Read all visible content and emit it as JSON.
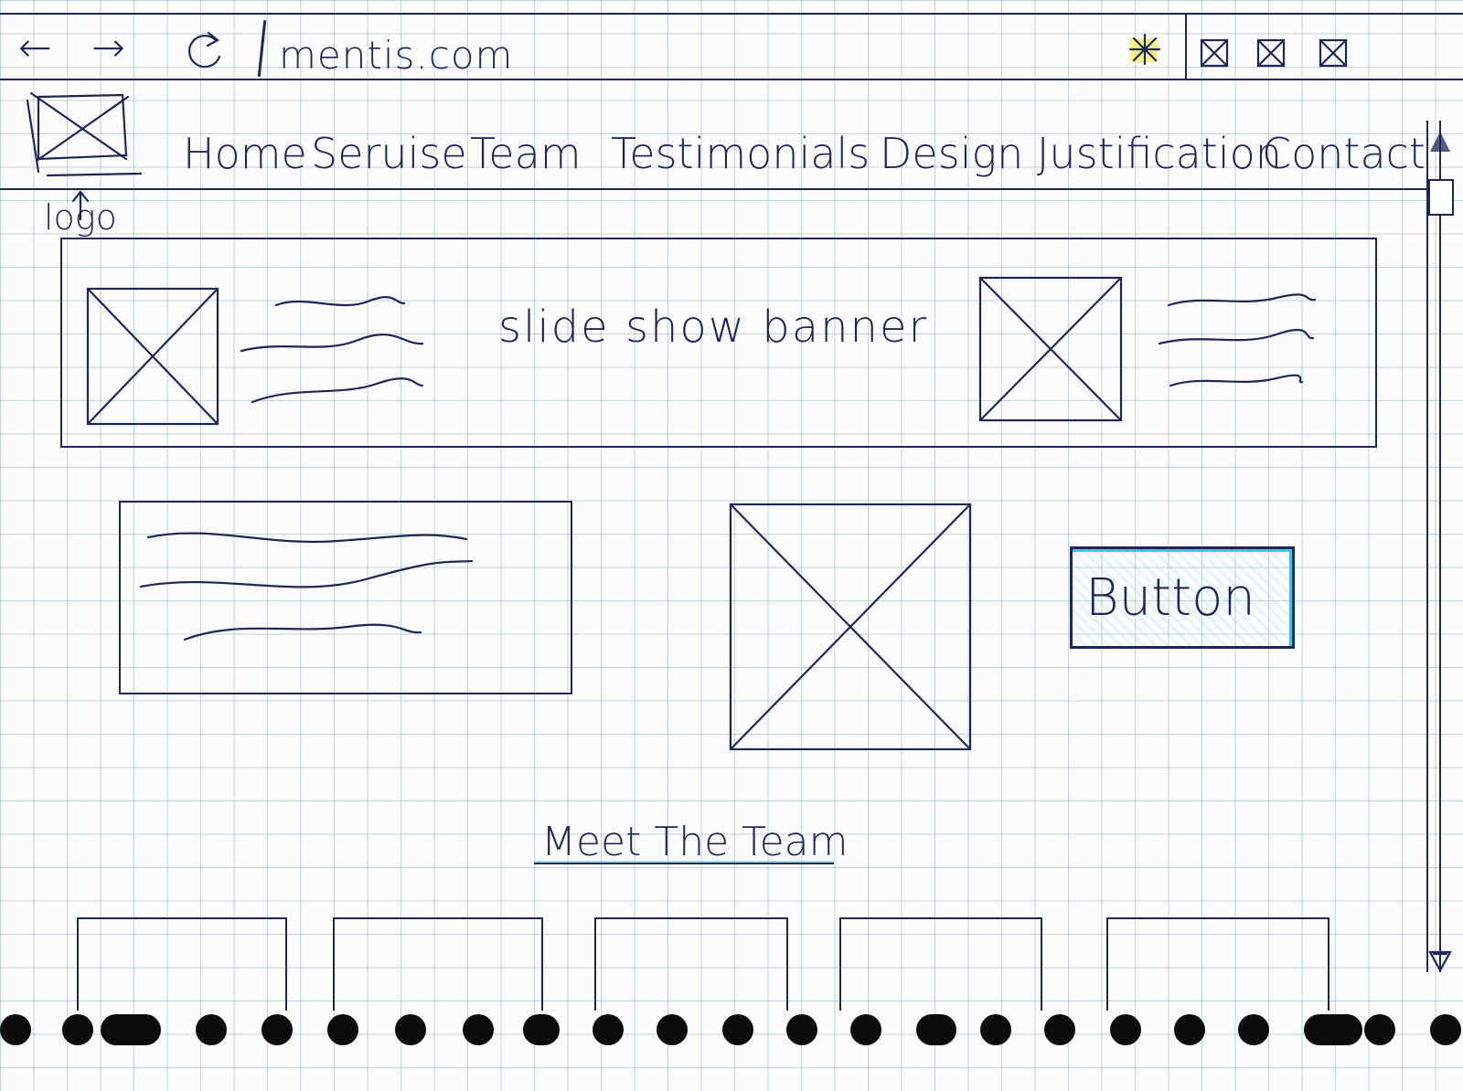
{
  "browser": {
    "back_icon": "back-arrow-icon",
    "back_label": "←",
    "forward_icon": "forward-arrow-icon",
    "forward_label": "→",
    "reload_icon": "reload-icon",
    "reload_label": "C",
    "url": "mentis.com",
    "toolbar_icons": [
      "extension-icon",
      "minimize-icon",
      "maximize-icon",
      "close-icon"
    ]
  },
  "header": {
    "logo_label": "logo",
    "nav": [
      "Home",
      "Seruise",
      "Team",
      "Testimonials",
      "Design Justification",
      "Contact"
    ]
  },
  "banner": {
    "caption": "slide show banner"
  },
  "content": {
    "button_label": "Button"
  },
  "team": {
    "heading": "Meet The Team",
    "member_count": 5
  },
  "colors": {
    "ink": "#1d2656",
    "accent": "#3fc4e6",
    "grid": "#78a5b9",
    "paper": "#fbfcfb"
  }
}
